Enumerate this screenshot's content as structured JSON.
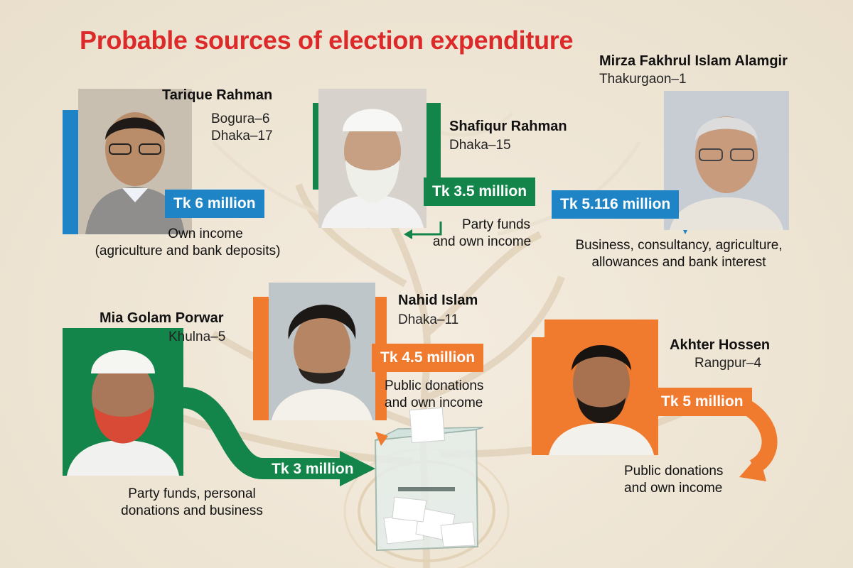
{
  "title": "Probable sources of election expenditure",
  "candidates": [
    {
      "name": "Tarique Rahman",
      "constituency_1": "Bogura–6",
      "constituency_2": "Dhaka–17",
      "amount": "Tk 6 million",
      "source_1": "Own income",
      "source_2": "(agriculture and bank deposits)",
      "color": "#1f84c6"
    },
    {
      "name": "Shafiqur Rahman",
      "constituency_1": "Dhaka–15",
      "amount": "Tk 3.5 million",
      "source_1": "Party funds",
      "source_2": "and own income",
      "color": "#13854a"
    },
    {
      "name": "Mirza Fakhrul Islam Alamgir",
      "constituency_1": "Thakurgaon–1",
      "amount": "Tk 5.116 million",
      "source_1": "Business, consultancy, agriculture,",
      "source_2": "allowances and bank interest",
      "color": "#1f84c6"
    },
    {
      "name": "Mia Golam Porwar",
      "constituency_1": "Khulna–5",
      "amount": "Tk 3 million",
      "source_1": "Party funds, personal",
      "source_2": "donations and business",
      "color": "#13854a"
    },
    {
      "name": "Nahid Islam",
      "constituency_1": "Dhaka–11",
      "amount": "Tk 4.5 million",
      "source_1": "Public donations",
      "source_2": "and own income",
      "color": "#f07a2e"
    },
    {
      "name": "Akhter Hossen",
      "constituency_1": "Rangpur–4",
      "amount": "Tk 5 million",
      "source_1": "Public donations",
      "source_2": "and own income",
      "color": "#f07a2e"
    }
  ]
}
